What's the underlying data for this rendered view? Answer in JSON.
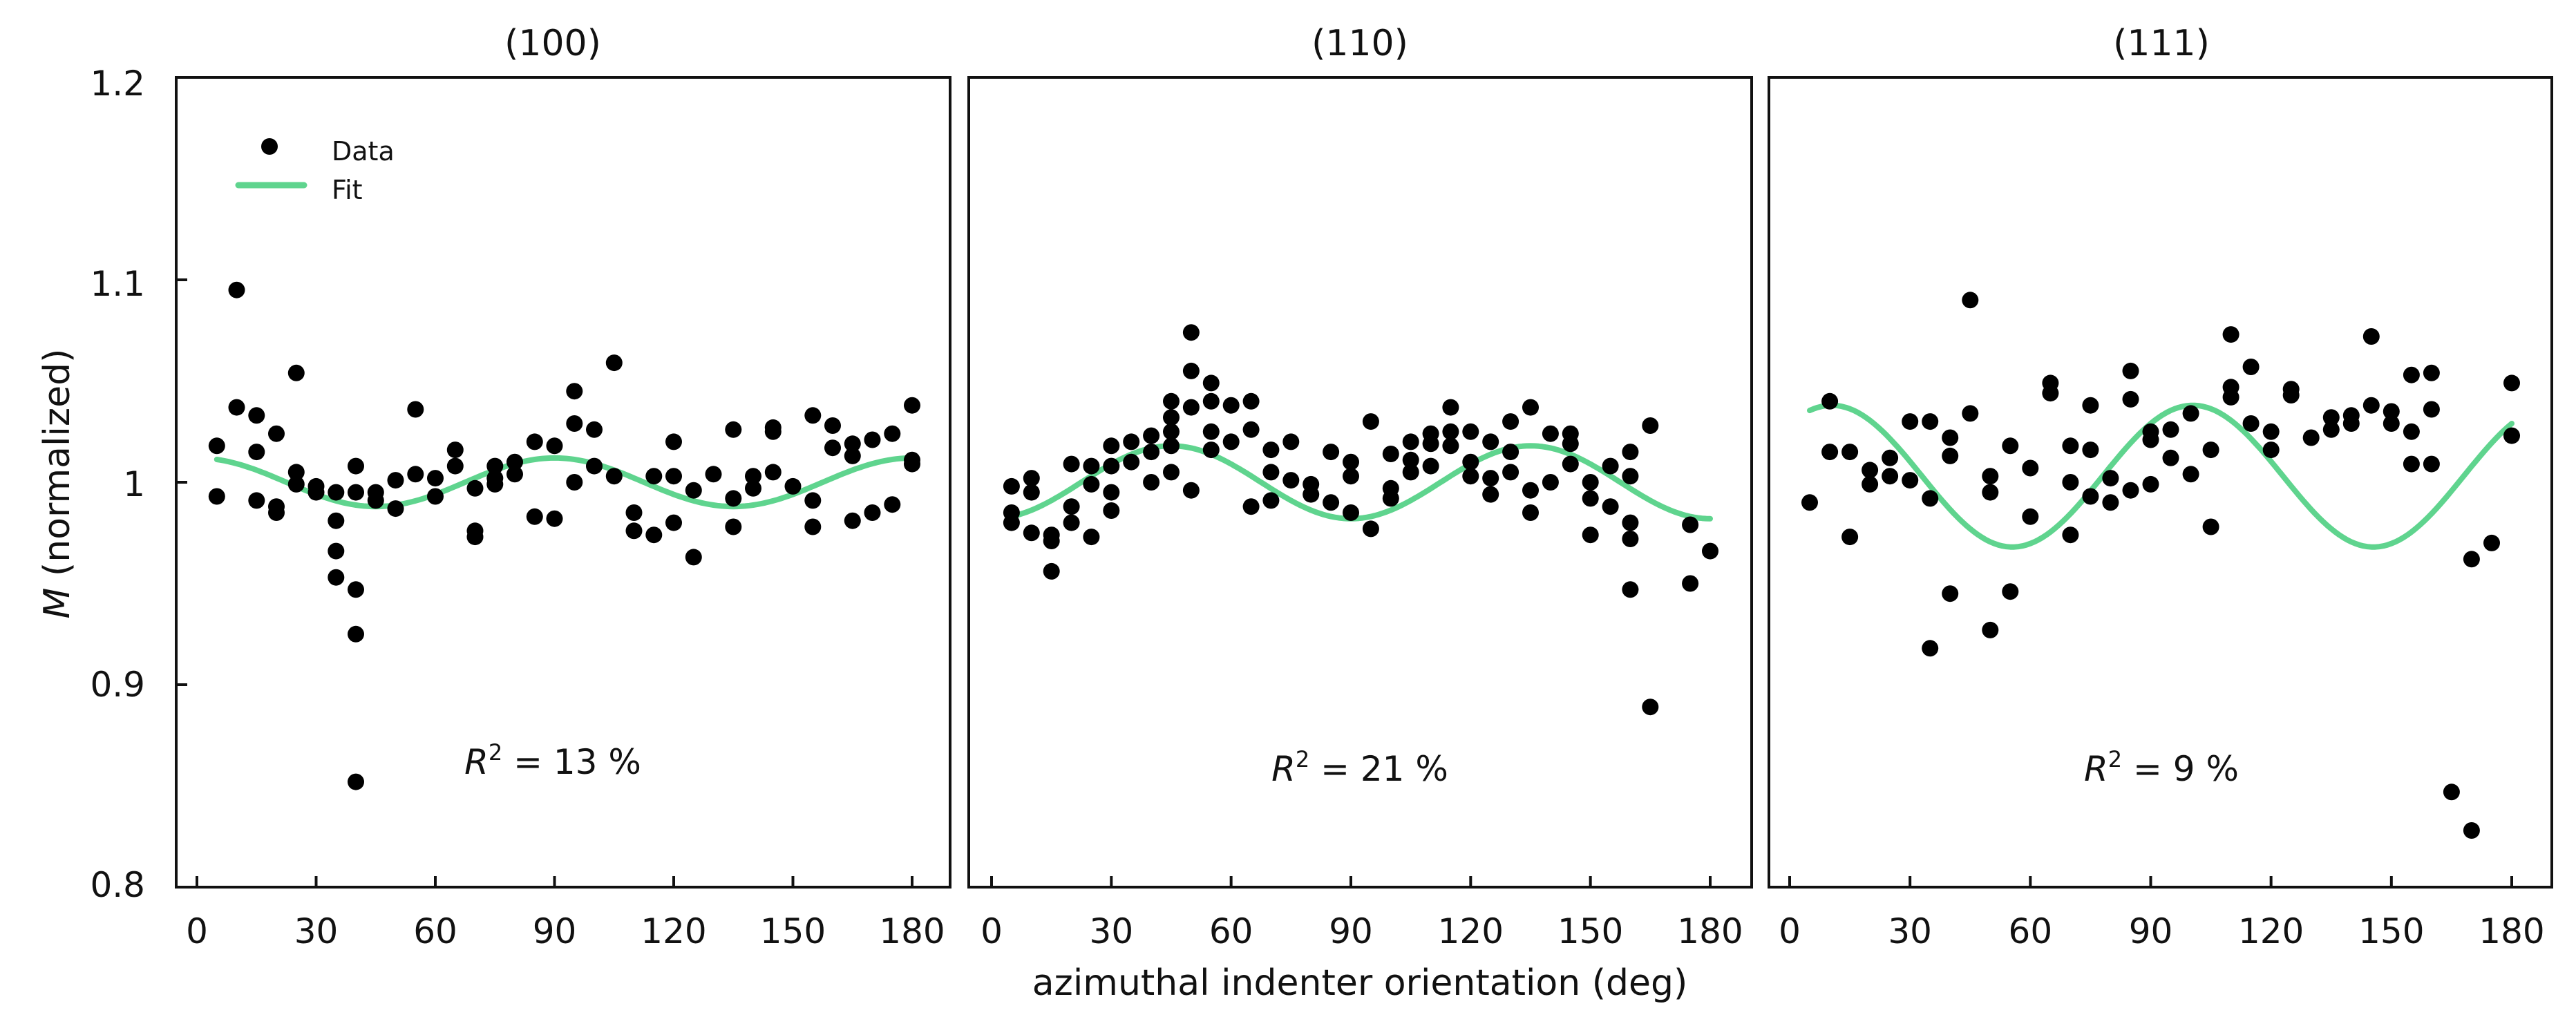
{
  "chart_data": {
    "type": "scatter",
    "xlabel": "azimuthal indenter orientation (deg)",
    "ylabel_italic": "M",
    "ylabel_rest": " (normalized)",
    "ylim": [
      0.8,
      1.2
    ],
    "yticks": [
      0.8,
      0.9,
      1.0,
      1.1,
      1.2
    ],
    "ytick_labels": [
      "0.8",
      "0.9",
      "1",
      "1.1",
      "1.2"
    ],
    "xlim": [
      0,
      180
    ],
    "xticks": [
      0,
      30,
      60,
      90,
      120,
      150,
      180
    ],
    "xtick_labels": [
      "0",
      "30",
      "60",
      "90",
      "120",
      "150",
      "180"
    ],
    "legend": {
      "data_label": "Data",
      "fit_label": "Fit",
      "placement": "top-left of first panel"
    },
    "colors": {
      "data": "#000000",
      "fit": "#5fd48e",
      "frame": "#111111"
    },
    "panels": [
      {
        "title": "(100)",
        "r2_label": "R",
        "r2_value": " = 13 %",
        "fit": {
          "mean": 1.0,
          "amplitude": 0.012,
          "period": 90,
          "phase_deg": 0
        },
        "points": [
          [
            5,
            1.018
          ],
          [
            5,
            0.993
          ],
          [
            10,
            1.095
          ],
          [
            10,
            1.037
          ],
          [
            15,
            1.033
          ],
          [
            15,
            1.015
          ],
          [
            15,
            0.991
          ],
          [
            20,
            1.024
          ],
          [
            20,
            0.988
          ],
          [
            20,
            0.985
          ],
          [
            25,
            1.054
          ],
          [
            25,
            1.005
          ],
          [
            25,
            0.999
          ],
          [
            30,
            0.998
          ],
          [
            30,
            0.995
          ],
          [
            35,
            0.995
          ],
          [
            35,
            0.981
          ],
          [
            35,
            0.966
          ],
          [
            35,
            0.953
          ],
          [
            40,
            1.008
          ],
          [
            40,
            0.995
          ],
          [
            40,
            0.947
          ],
          [
            40,
            0.925
          ],
          [
            40,
            0.852
          ],
          [
            45,
            0.995
          ],
          [
            45,
            0.991
          ],
          [
            50,
            1.001
          ],
          [
            50,
            0.987
          ],
          [
            55,
            1.036
          ],
          [
            55,
            1.004
          ],
          [
            60,
            1.002
          ],
          [
            60,
            0.993
          ],
          [
            65,
            1.016
          ],
          [
            65,
            1.008
          ],
          [
            70,
            0.997
          ],
          [
            70,
            0.976
          ],
          [
            70,
            0.973
          ],
          [
            75,
            1.008
          ],
          [
            75,
            1.002
          ],
          [
            75,
            0.999
          ],
          [
            80,
            1.01
          ],
          [
            80,
            1.004
          ],
          [
            85,
            1.02
          ],
          [
            85,
            0.983
          ],
          [
            90,
            1.018
          ],
          [
            90,
            0.982
          ],
          [
            95,
            1.045
          ],
          [
            95,
            1.029
          ],
          [
            95,
            1.0
          ],
          [
            100,
            1.026
          ],
          [
            100,
            1.008
          ],
          [
            105,
            1.059
          ],
          [
            105,
            1.003
          ],
          [
            110,
            0.985
          ],
          [
            110,
            0.976
          ],
          [
            115,
            1.003
          ],
          [
            115,
            0.974
          ],
          [
            120,
            1.02
          ],
          [
            120,
            1.003
          ],
          [
            120,
            0.98
          ],
          [
            125,
            0.996
          ],
          [
            125,
            0.963
          ],
          [
            130,
            1.004
          ],
          [
            135,
            1.026
          ],
          [
            135,
            0.992
          ],
          [
            135,
            0.978
          ],
          [
            140,
            1.003
          ],
          [
            140,
            0.997
          ],
          [
            145,
            1.027
          ],
          [
            145,
            1.025
          ],
          [
            145,
            1.005
          ],
          [
            150,
            0.998
          ],
          [
            155,
            1.033
          ],
          [
            155,
            0.991
          ],
          [
            155,
            0.978
          ],
          [
            160,
            1.028
          ],
          [
            160,
            1.017
          ],
          [
            165,
            1.019
          ],
          [
            165,
            1.013
          ],
          [
            165,
            0.981
          ],
          [
            170,
            1.021
          ],
          [
            170,
            0.985
          ],
          [
            175,
            1.024
          ],
          [
            175,
            0.989
          ],
          [
            180,
            1.038
          ],
          [
            180,
            1.011
          ],
          [
            180,
            1.009
          ]
        ]
      },
      {
        "title": "(110)",
        "r2_label": "R",
        "r2_value": " = 21 %",
        "fit": {
          "mean": 1.0,
          "amplitude": 0.018,
          "period": 90,
          "phase_deg": 45
        },
        "points": [
          [
            5,
            0.998
          ],
          [
            5,
            0.985
          ],
          [
            5,
            0.98
          ],
          [
            10,
            1.002
          ],
          [
            10,
            0.995
          ],
          [
            10,
            0.975
          ],
          [
            15,
            0.971
          ],
          [
            15,
            0.974
          ],
          [
            15,
            0.956
          ],
          [
            20,
            1.009
          ],
          [
            20,
            0.988
          ],
          [
            20,
            0.98
          ],
          [
            25,
            1.008
          ],
          [
            25,
            0.999
          ],
          [
            25,
            0.973
          ],
          [
            30,
            1.018
          ],
          [
            30,
            1.008
          ],
          [
            30,
            0.995
          ],
          [
            30,
            0.986
          ],
          [
            35,
            1.02
          ],
          [
            35,
            1.01
          ],
          [
            40,
            1.023
          ],
          [
            40,
            1.015
          ],
          [
            40,
            1.0
          ],
          [
            45,
            1.04
          ],
          [
            45,
            1.032
          ],
          [
            45,
            1.025
          ],
          [
            45,
            1.018
          ],
          [
            45,
            1.005
          ],
          [
            50,
            1.074
          ],
          [
            50,
            1.055
          ],
          [
            50,
            1.037
          ],
          [
            50,
            0.996
          ],
          [
            55,
            1.049
          ],
          [
            55,
            1.04
          ],
          [
            55,
            1.025
          ],
          [
            55,
            1.016
          ],
          [
            60,
            1.038
          ],
          [
            60,
            1.02
          ],
          [
            65,
            1.04
          ],
          [
            65,
            1.026
          ],
          [
            65,
            0.988
          ],
          [
            70,
            1.016
          ],
          [
            70,
            1.005
          ],
          [
            70,
            0.991
          ],
          [
            75,
            1.02
          ],
          [
            75,
            1.001
          ],
          [
            80,
            0.999
          ],
          [
            80,
            0.994
          ],
          [
            85,
            1.015
          ],
          [
            85,
            0.99
          ],
          [
            90,
            1.01
          ],
          [
            90,
            1.003
          ],
          [
            90,
            0.985
          ],
          [
            95,
            1.03
          ],
          [
            95,
            0.977
          ],
          [
            100,
            1.014
          ],
          [
            100,
            0.997
          ],
          [
            100,
            0.992
          ],
          [
            105,
            1.02
          ],
          [
            105,
            1.011
          ],
          [
            105,
            1.005
          ],
          [
            110,
            1.024
          ],
          [
            110,
            1.019
          ],
          [
            110,
            1.008
          ],
          [
            115,
            1.037
          ],
          [
            115,
            1.025
          ],
          [
            115,
            1.018
          ],
          [
            120,
            1.025
          ],
          [
            120,
            1.01
          ],
          [
            120,
            1.003
          ],
          [
            125,
            1.02
          ],
          [
            125,
            1.002
          ],
          [
            125,
            0.994
          ],
          [
            130,
            1.03
          ],
          [
            130,
            1.015
          ],
          [
            130,
            1.005
          ],
          [
            135,
            1.037
          ],
          [
            135,
            0.996
          ],
          [
            135,
            0.985
          ],
          [
            140,
            1.024
          ],
          [
            140,
            1.0
          ],
          [
            145,
            1.024
          ],
          [
            145,
            1.019
          ],
          [
            145,
            1.009
          ],
          [
            150,
            1.0
          ],
          [
            150,
            0.992
          ],
          [
            150,
            0.974
          ],
          [
            155,
            1.008
          ],
          [
            155,
            0.988
          ],
          [
            160,
            1.015
          ],
          [
            160,
            1.003
          ],
          [
            160,
            0.98
          ],
          [
            160,
            0.972
          ],
          [
            160,
            0.947
          ],
          [
            165,
            1.028
          ],
          [
            165,
            0.889
          ],
          [
            175,
            0.979
          ],
          [
            175,
            0.95
          ],
          [
            180,
            0.966
          ]
        ]
      },
      {
        "title": "(111)",
        "r2_label": "R",
        "r2_value": " = 9 %",
        "fit": {
          "mean": 1.003,
          "amplitude": 0.035,
          "period": 90,
          "phase_deg": 10.5
        },
        "points": [
          [
            5,
            0.99
          ],
          [
            10,
            1.04
          ],
          [
            10,
            1.015
          ],
          [
            15,
            1.015
          ],
          [
            15,
            0.973
          ],
          [
            20,
            1.006
          ],
          [
            20,
            0.999
          ],
          [
            25,
            1.012
          ],
          [
            25,
            1.003
          ],
          [
            30,
            1.03
          ],
          [
            30,
            1.001
          ],
          [
            35,
            1.03
          ],
          [
            35,
            0.992
          ],
          [
            35,
            0.918
          ],
          [
            40,
            1.022
          ],
          [
            40,
            1.013
          ],
          [
            40,
            0.945
          ],
          [
            45,
            1.09
          ],
          [
            45,
            1.034
          ],
          [
            50,
            1.003
          ],
          [
            50,
            0.995
          ],
          [
            50,
            0.927
          ],
          [
            55,
            1.018
          ],
          [
            55,
            0.946
          ],
          [
            60,
            1.007
          ],
          [
            60,
            0.983
          ],
          [
            65,
            1.049
          ],
          [
            65,
            1.044
          ],
          [
            70,
            1.018
          ],
          [
            70,
            1.0
          ],
          [
            70,
            0.974
          ],
          [
            75,
            1.038
          ],
          [
            75,
            1.016
          ],
          [
            75,
            0.993
          ],
          [
            80,
            1.002
          ],
          [
            80,
            0.99
          ],
          [
            85,
            1.055
          ],
          [
            85,
            1.041
          ],
          [
            85,
            0.996
          ],
          [
            90,
            1.025
          ],
          [
            90,
            1.021
          ],
          [
            90,
            0.999
          ],
          [
            95,
            1.026
          ],
          [
            95,
            1.012
          ],
          [
            100,
            1.034
          ],
          [
            100,
            1.004
          ],
          [
            105,
            1.016
          ],
          [
            105,
            0.978
          ],
          [
            110,
            1.073
          ],
          [
            110,
            1.047
          ],
          [
            110,
            1.042
          ],
          [
            115,
            1.057
          ],
          [
            115,
            1.029
          ],
          [
            120,
            1.025
          ],
          [
            120,
            1.016
          ],
          [
            125,
            1.046
          ],
          [
            125,
            1.043
          ],
          [
            130,
            1.022
          ],
          [
            135,
            1.032
          ],
          [
            135,
            1.026
          ],
          [
            140,
            1.033
          ],
          [
            140,
            1.029
          ],
          [
            145,
            1.072
          ],
          [
            145,
            1.038
          ],
          [
            150,
            1.035
          ],
          [
            150,
            1.029
          ],
          [
            155,
            1.053
          ],
          [
            155,
            1.025
          ],
          [
            155,
            1.009
          ],
          [
            160,
            1.054
          ],
          [
            160,
            1.036
          ],
          [
            160,
            1.009
          ],
          [
            165,
            0.847
          ],
          [
            170,
            0.962
          ],
          [
            170,
            0.828
          ],
          [
            175,
            0.97
          ],
          [
            180,
            1.049
          ],
          [
            180,
            1.023
          ]
        ]
      }
    ]
  }
}
